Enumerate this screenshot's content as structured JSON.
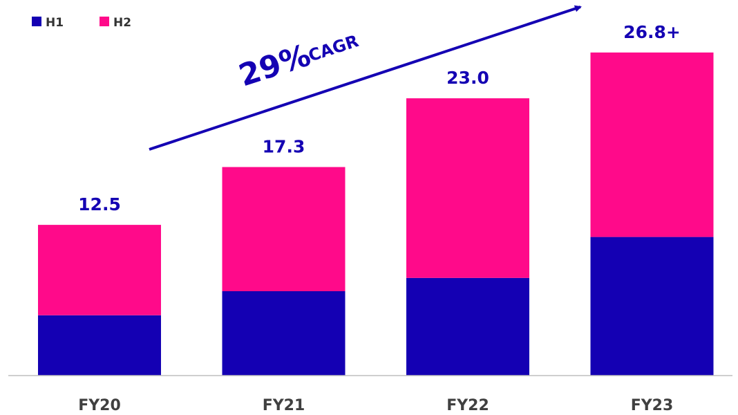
{
  "chart_data": {
    "type": "bar",
    "stacked": true,
    "categories": [
      "FY20",
      "FY21",
      "FY22",
      "FY23"
    ],
    "series": [
      {
        "name": "H1",
        "values": [
          5.0,
          7.0,
          8.1,
          11.5
        ],
        "color": "#1400B3"
      },
      {
        "name": "H2",
        "values": [
          7.5,
          10.3,
          14.9,
          15.3
        ],
        "color": "#FF0A8A"
      }
    ],
    "totals": [
      "12.5",
      "17.3",
      "23.0",
      "26.8+"
    ],
    "ylim": [
      0,
      28
    ],
    "grid": false,
    "legend_position": "top-left",
    "annotation": {
      "text_big": "29%",
      "text_small": "CAGR",
      "color": "#1400B3"
    },
    "label_color": "#1400B3",
    "axis_color": "#bfbfbf"
  }
}
